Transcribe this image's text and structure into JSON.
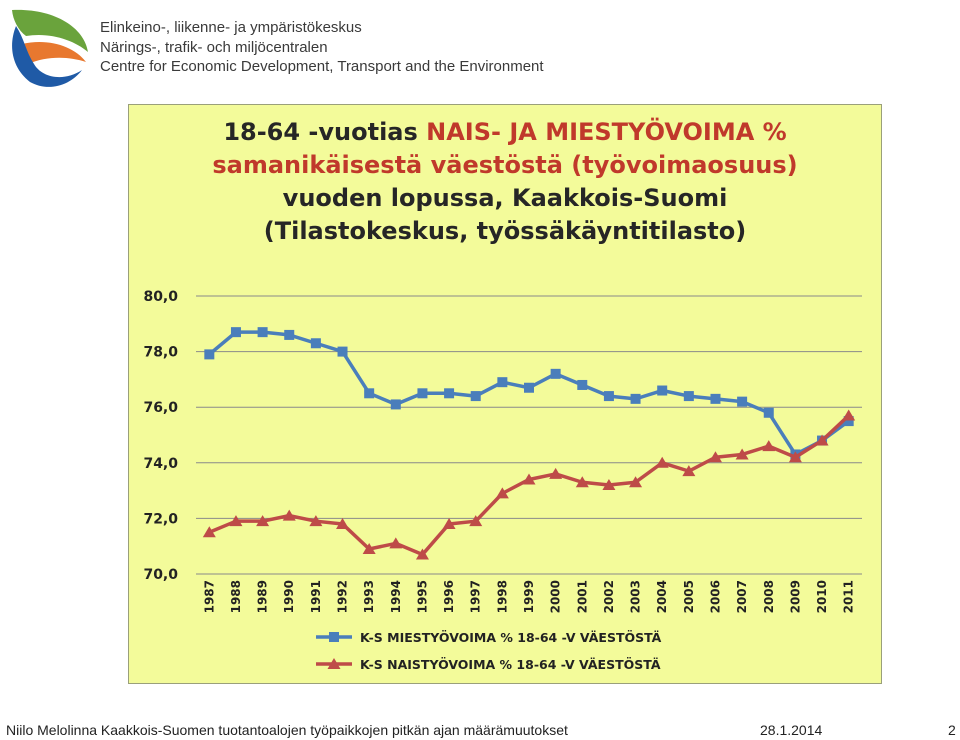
{
  "header": {
    "org_lines": [
      "Elinkeino-, liikenne- ja ympäristökeskus",
      "Närings-, trafik- och miljöcentralen",
      "Centre for Economic Development, Transport and the Environment"
    ]
  },
  "chart_data": {
    "type": "line",
    "title_parts": [
      {
        "text": "18-64 -vuotias ",
        "color": "#262626"
      },
      {
        "text": "NAIS- JA MIESTYÖVOIMA % samanikäisestä väestöstä (työvoimaosuus)",
        "color": "#c0392b"
      },
      {
        "text": " vuoden lopussa, Kaakkois-Suomi (Tilastokeskus, työssäkäyntitilasto)",
        "color": "#262626"
      }
    ],
    "categories": [
      "1987",
      "1988",
      "1989",
      "1990",
      "1991",
      "1992",
      "1993",
      "1994",
      "1995",
      "1996",
      "1997",
      "1998",
      "1999",
      "2000",
      "2001",
      "2002",
      "2003",
      "2004",
      "2005",
      "2006",
      "2007",
      "2008",
      "2009",
      "2010",
      "2011"
    ],
    "ylim": [
      70,
      80
    ],
    "yticks": [
      "70,0",
      "72,0",
      "74,0",
      "76,0",
      "78,0",
      "80,0"
    ],
    "grid": true,
    "legend_position": "bottom",
    "series": [
      {
        "name": "K-S MIESTYÖVOIMA % 18-64 -V VÄESTÖSTÄ",
        "color": "#4a7ebb",
        "marker": "square",
        "values": [
          77.9,
          78.7,
          78.7,
          78.6,
          78.3,
          78.0,
          76.5,
          76.1,
          76.5,
          76.5,
          76.4,
          76.9,
          76.7,
          77.2,
          76.8,
          76.4,
          76.3,
          76.6,
          76.4,
          76.3,
          76.2,
          75.8,
          74.3,
          74.8,
          75.5
        ]
      },
      {
        "name": "K-S NAISTYÖVOIMA % 18-64 -V VÄESTÖSTÄ",
        "color": "#be4b48",
        "marker": "triangle",
        "values": [
          71.5,
          71.9,
          71.9,
          72.1,
          71.9,
          71.8,
          70.9,
          71.1,
          70.7,
          71.8,
          71.9,
          72.9,
          73.4,
          73.6,
          73.3,
          73.2,
          73.3,
          74.0,
          73.7,
          74.2,
          74.3,
          74.6,
          74.2,
          74.8,
          75.7
        ]
      }
    ]
  },
  "footer": {
    "left": "Niilo Melolinna  Kaakkois-Suomen tuotantoalojen työpaikkojen pitkän ajan määrämuutokset",
    "date": "28.1.2014",
    "page": "2"
  }
}
